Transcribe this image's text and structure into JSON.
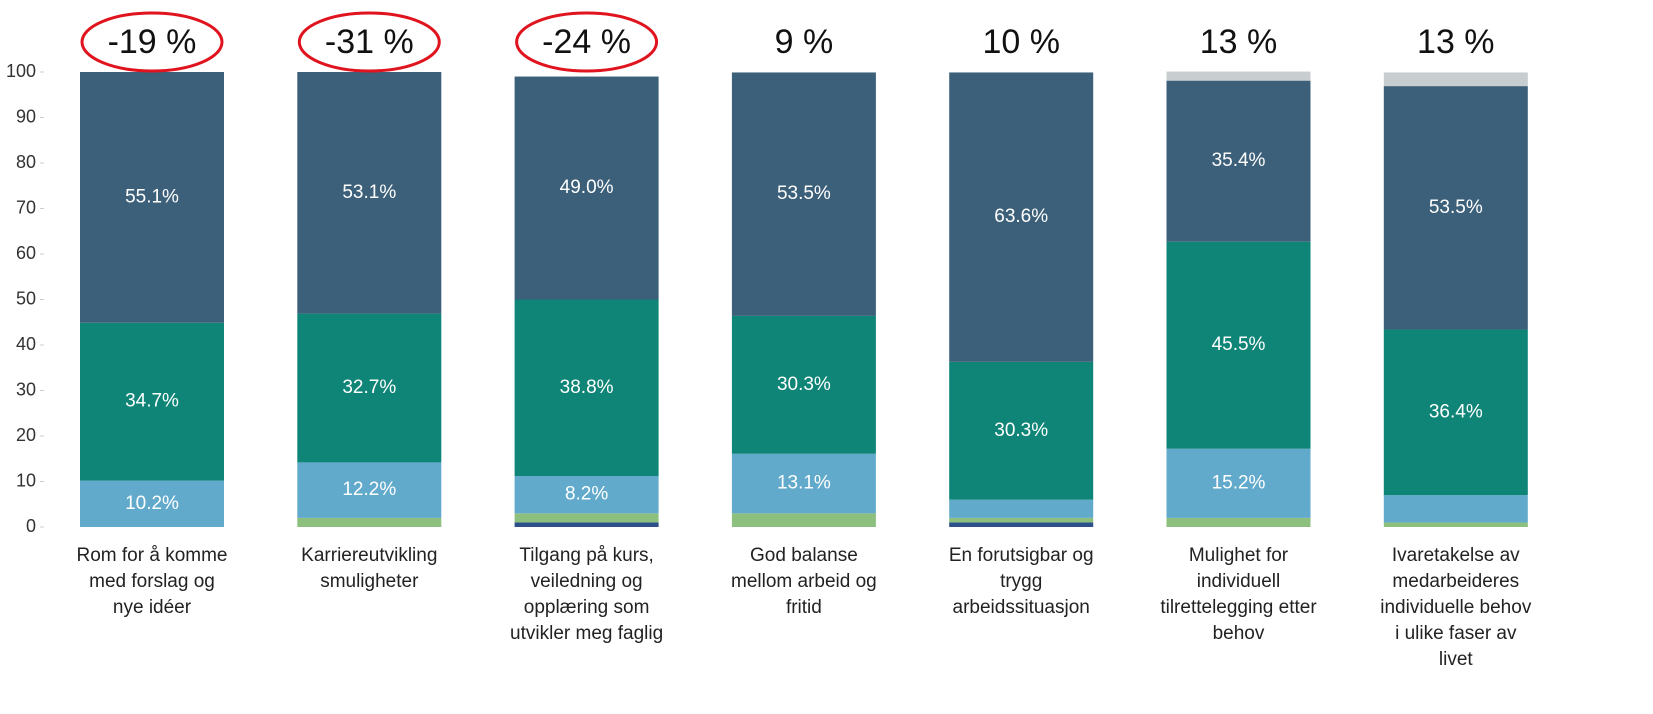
{
  "chart_data": {
    "type": "stacked_bar",
    "categories": [
      "Rom for å komme med forslag og nye idéer",
      "Karriereutvikling smuligheter",
      "Tilgang på kurs, veiledning og opplæring som utvikler meg faglig",
      "God balanse mellom arbeid og fritid",
      "En forutsigbar og trygg arbeidssituasjon",
      "Mulighet for individuell tilrettelegging etter behov",
      "Ivaretakelse av medarbeideres individuelle behov i ulike faser av livet"
    ],
    "series": [
      {
        "color": "#2d4f8a",
        "values": [
          0,
          0,
          1,
          0,
          1,
          0,
          0
        ],
        "value_labels": [
          null,
          null,
          null,
          null,
          null,
          null,
          null
        ]
      },
      {
        "color": "#8dc07f",
        "values": [
          0,
          2,
          2,
          3,
          1,
          2,
          1
        ],
        "value_labels": [
          null,
          null,
          null,
          null,
          null,
          null,
          null
        ]
      },
      {
        "color": "#62aacc",
        "values": [
          10.2,
          12.2,
          8.2,
          13.1,
          4,
          15.2,
          6
        ],
        "value_labels": [
          "10.2%",
          "12.2%",
          "8.2%",
          "13.1%",
          null,
          "15.2%",
          null
        ]
      },
      {
        "color": "#0f8577",
        "values": [
          34.7,
          32.7,
          38.8,
          30.3,
          30.3,
          45.5,
          36.4
        ],
        "value_labels": [
          "34.7%",
          "32.7%",
          "38.8%",
          "30.3%",
          "30.3%",
          "45.5%",
          "36.4%"
        ]
      },
      {
        "color": "#3d607a",
        "values": [
          55.1,
          53.1,
          49.0,
          53.5,
          63.6,
          35.4,
          53.5
        ],
        "value_labels": [
          "55.1%",
          "53.1%",
          "49.0%",
          "53.5%",
          "63.6%",
          "35.4%",
          "53.5%"
        ]
      },
      {
        "color": "#c8cdd0",
        "values": [
          0,
          0,
          0,
          0,
          0,
          2,
          3
        ],
        "value_labels": [
          null,
          null,
          null,
          null,
          null,
          null,
          null
        ]
      }
    ],
    "annotations": [
      {
        "text": "-19 %",
        "circled": true
      },
      {
        "text": "-31 %",
        "circled": true
      },
      {
        "text": "-24 %",
        "circled": true
      },
      {
        "text": "9 %",
        "circled": false
      },
      {
        "text": "10 %",
        "circled": false
      },
      {
        "text": "13 %",
        "circled": false
      },
      {
        "text": "13 %",
        "circled": false
      }
    ],
    "annotation_circle_color": "#e0141e",
    "ylim": [
      0,
      100
    ],
    "yticks": [
      0,
      10,
      20,
      30,
      40,
      50,
      60,
      70,
      80,
      90,
      100
    ],
    "grid": false
  }
}
